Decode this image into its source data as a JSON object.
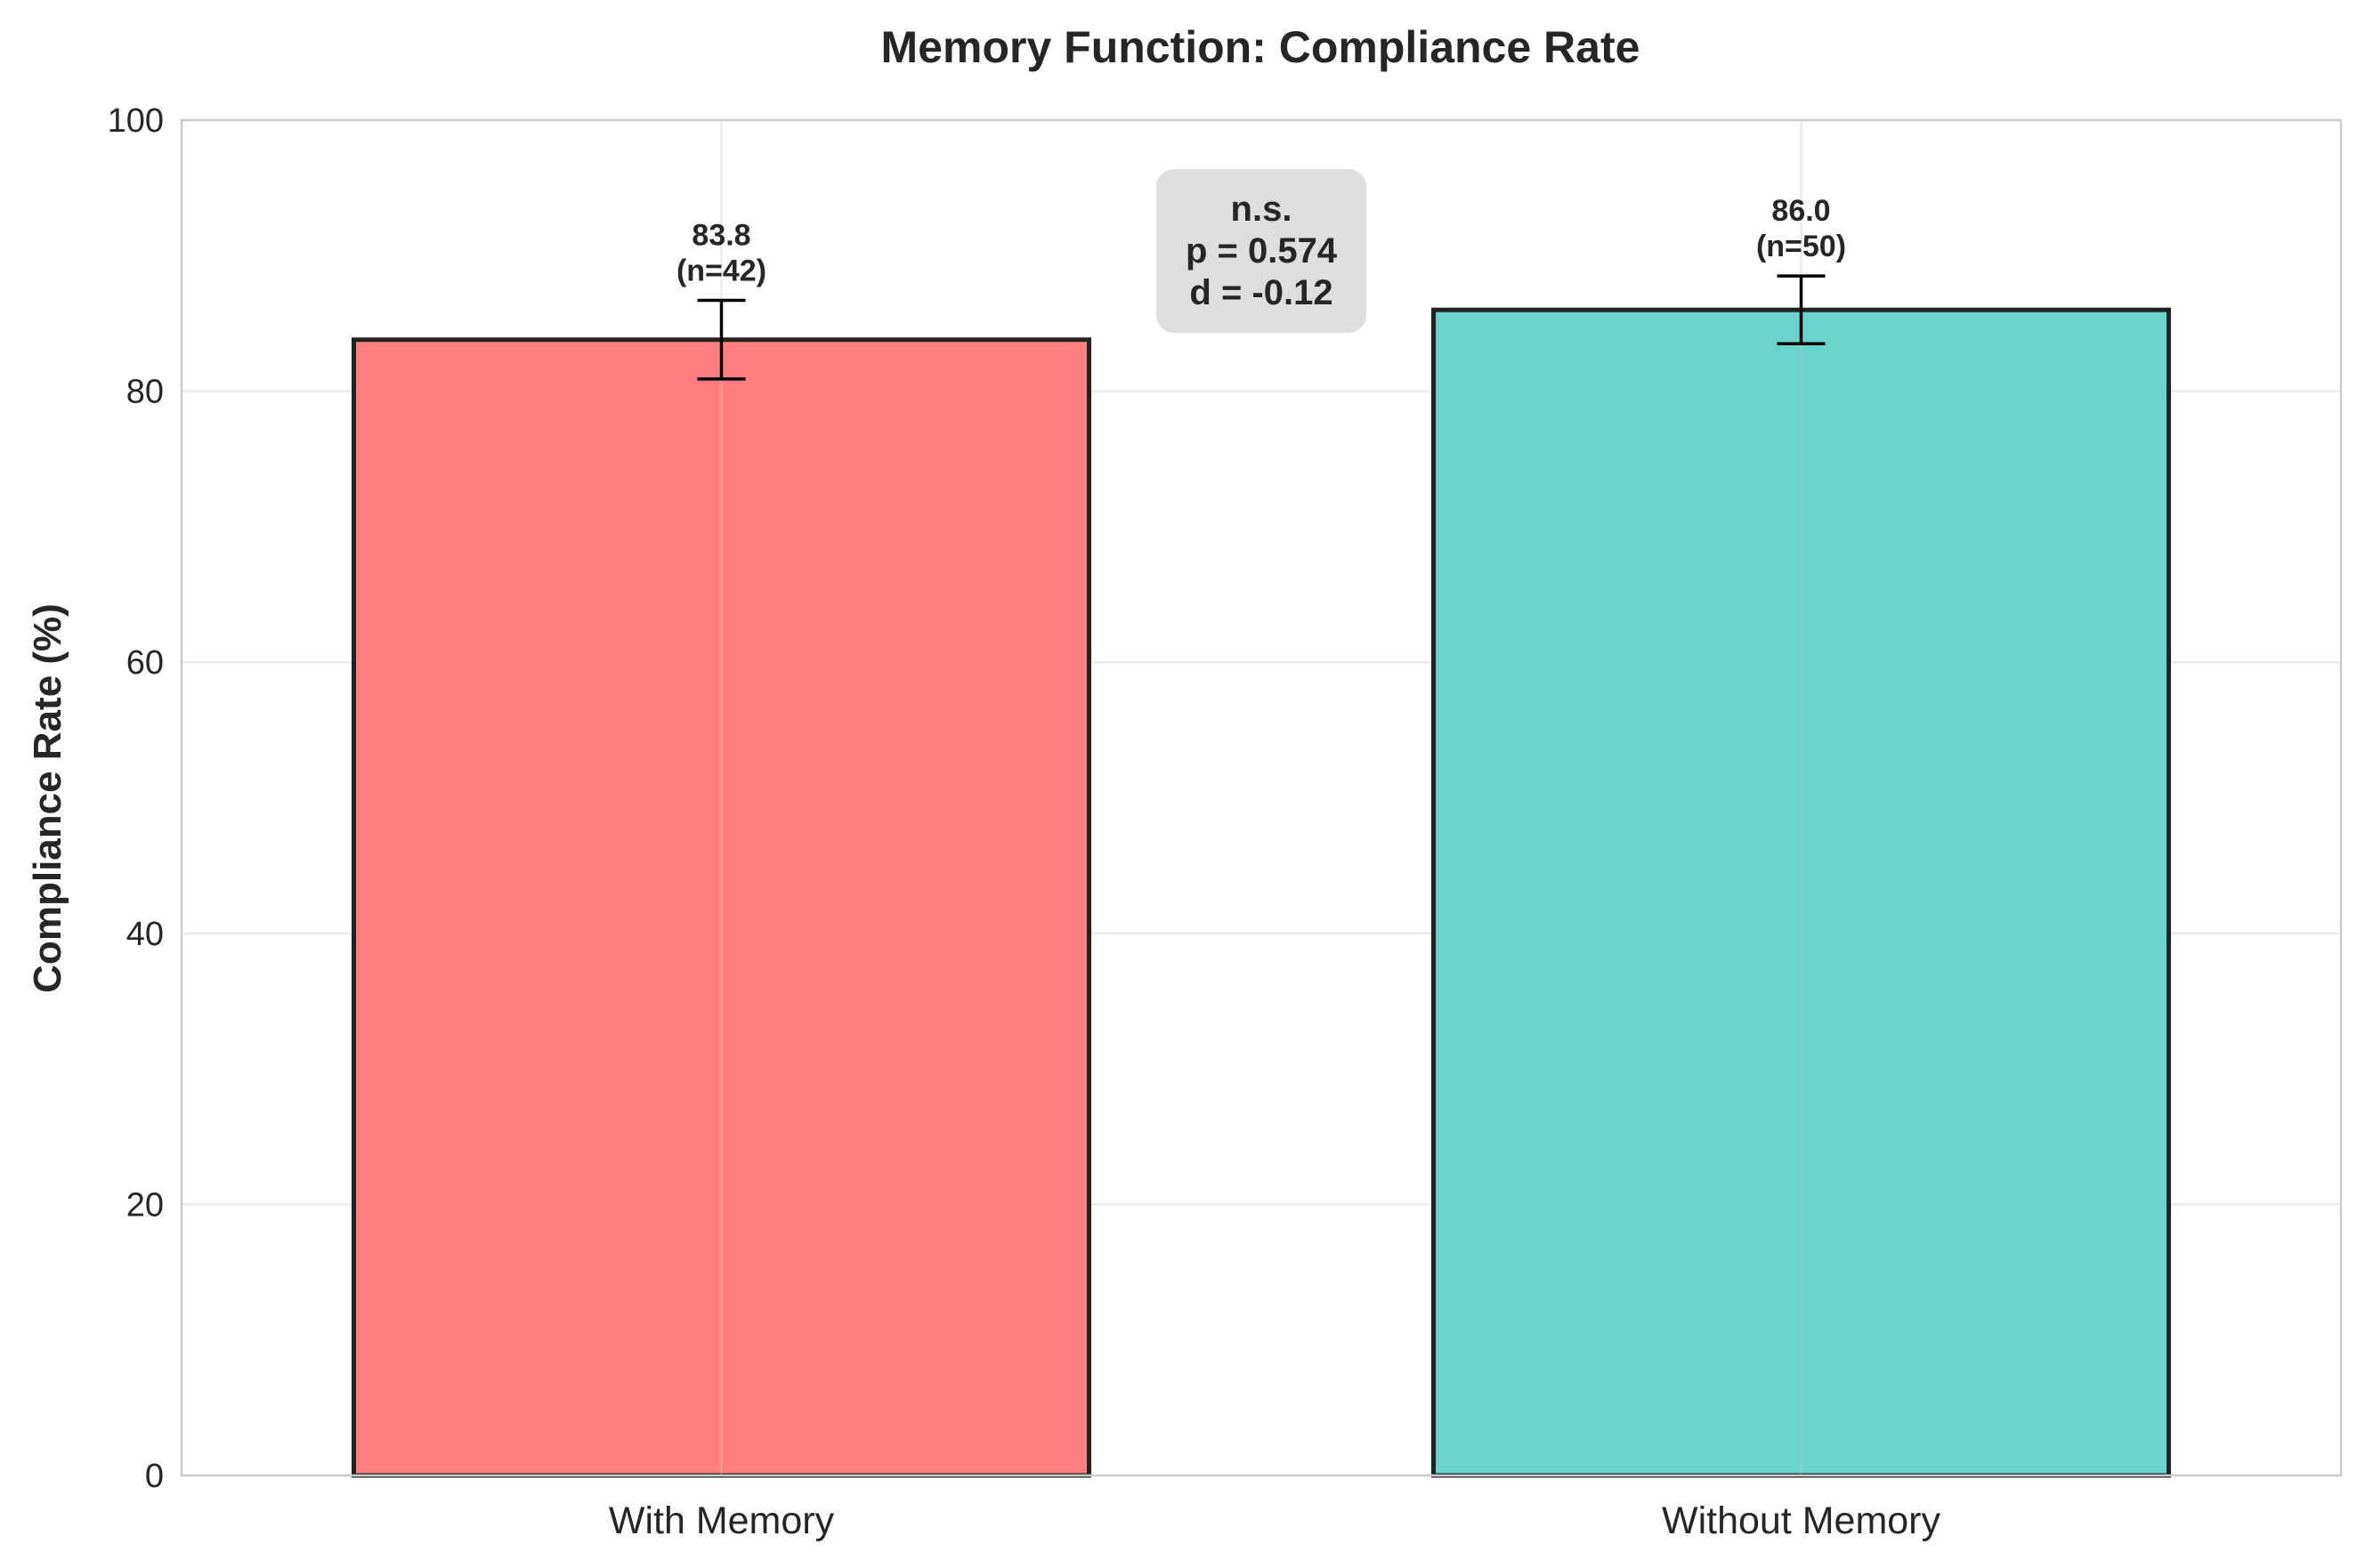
{
  "chart_data": {
    "type": "bar",
    "title": "Memory Function: Compliance Rate",
    "xlabel": "",
    "ylabel": "Compliance Rate (%)",
    "categories": [
      "With Memory",
      "Without Memory"
    ],
    "values": [
      83.8,
      86.0
    ],
    "errors": [
      2.9,
      2.5
    ],
    "data_labels": [
      [
        "83.8",
        "(n=42)"
      ],
      [
        "86.0",
        "(n=50)"
      ]
    ],
    "colors": [
      "#FF7F80",
      "#6AD3CC"
    ],
    "edge_color": "#222222",
    "ylim": [
      0,
      100
    ],
    "yticks": [
      0,
      20,
      40,
      60,
      80,
      100
    ],
    "grid": true,
    "stats_box": {
      "lines": [
        "n.s.",
        "p = 0.574",
        "d = -0.12"
      ]
    }
  }
}
